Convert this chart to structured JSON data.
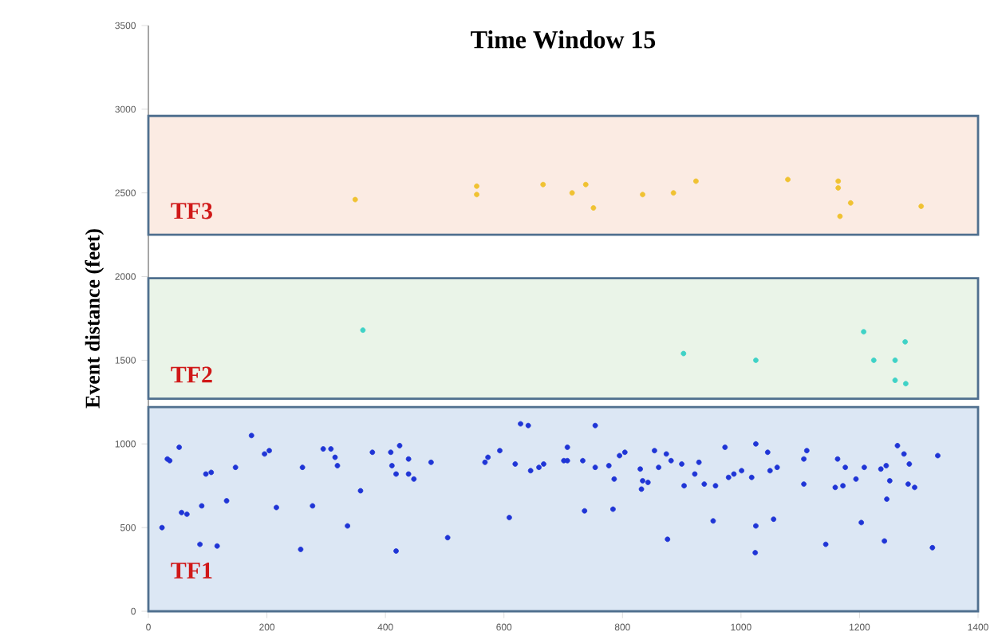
{
  "chart_data": {
    "type": "scatter",
    "title": "Time Window 15",
    "ylabel": "Event distance (feet)",
    "xlim": [
      0,
      1400
    ],
    "ylim": [
      0,
      3500
    ],
    "xticks": [
      0,
      200,
      400,
      600,
      800,
      1000,
      1200,
      1400
    ],
    "yticks": [
      0,
      500,
      1000,
      1500,
      2000,
      2500,
      3000,
      3500
    ],
    "marker": "circle",
    "bands": [
      {
        "axis": "y",
        "from": 0,
        "to": 1220,
        "label": "TF1",
        "color": "#dce7f4"
      },
      {
        "axis": "y",
        "from": 1270,
        "to": 1990,
        "label": "TF2",
        "color": "#eaf4e8"
      },
      {
        "axis": "y",
        "from": 2250,
        "to": 2960,
        "label": "TF3",
        "color": "#fbebe3"
      }
    ],
    "series": [
      {
        "color": "#1f35d6",
        "x": [
          23,
          32,
          36,
          52,
          56,
          65,
          87,
          90,
          97,
          106,
          116,
          132,
          147,
          174,
          196,
          204,
          216,
          257,
          260,
          277,
          295,
          308,
          315,
          319,
          336,
          358,
          378,
          409,
          411,
          418,
          424,
          418,
          439,
          439,
          448,
          477,
          505,
          568,
          573,
          593,
          609,
          619,
          628,
          641,
          645,
          659,
          667,
          701,
          707,
          707,
          733,
          736,
          754,
          754,
          777,
          784,
          786,
          795,
          804,
          830,
          834,
          832,
          843,
          854,
          861,
          874,
          876,
          882,
          900,
          904,
          922,
          929,
          938,
          953,
          957,
          973,
          979,
          988,
          1001,
          1018,
          1025,
          1025,
          1024,
          1045,
          1049,
          1055,
          1061,
          1106,
          1111,
          1106,
          1143,
          1159,
          1163,
          1172,
          1176,
          1194,
          1203,
          1208,
          1236,
          1245,
          1242,
          1246,
          1251,
          1264,
          1275,
          1284,
          1282,
          1293,
          1323,
          1332
        ],
        "values": [
          500,
          910,
          900,
          980,
          590,
          580,
          400,
          630,
          820,
          830,
          390,
          660,
          860,
          1050,
          940,
          960,
          620,
          370,
          860,
          630,
          970,
          970,
          920,
          870,
          510,
          720,
          950,
          950,
          870,
          820,
          990,
          360,
          910,
          820,
          790,
          890,
          440,
          890,
          920,
          960,
          560,
          880,
          1120,
          1110,
          840,
          860,
          880,
          900,
          980,
          900,
          900,
          600,
          1110,
          860,
          870,
          610,
          790,
          930,
          950,
          850,
          780,
          730,
          770,
          960,
          860,
          940,
          430,
          900,
          880,
          750,
          820,
          890,
          760,
          540,
          750,
          980,
          800,
          820,
          840,
          800,
          1000,
          510,
          350,
          950,
          840,
          550,
          860,
          910,
          960,
          760,
          400,
          740,
          910,
          750,
          860,
          790,
          530,
          860,
          850,
          870,
          420,
          670,
          780,
          990,
          940,
          880,
          760,
          740,
          380,
          930
        ]
      },
      {
        "color": "#3fd2c6",
        "x": [
          362,
          903,
          1025,
          1207,
          1277,
          1224,
          1260,
          1260,
          1278
        ],
        "values": [
          1680,
          1540,
          1500,
          1670,
          1610,
          1500,
          1500,
          1380,
          1360
        ]
      },
      {
        "color": "#f0c232",
        "x": [
          349,
          554,
          554,
          666,
          715,
          738,
          751,
          834,
          886,
          924,
          1079,
          1164,
          1164,
          1185,
          1167,
          1304
        ],
        "values": [
          2460,
          2540,
          2490,
          2550,
          2500,
          2550,
          2410,
          2490,
          2500,
          2570,
          2580,
          2570,
          2530,
          2440,
          2360,
          2420
        ]
      }
    ]
  }
}
